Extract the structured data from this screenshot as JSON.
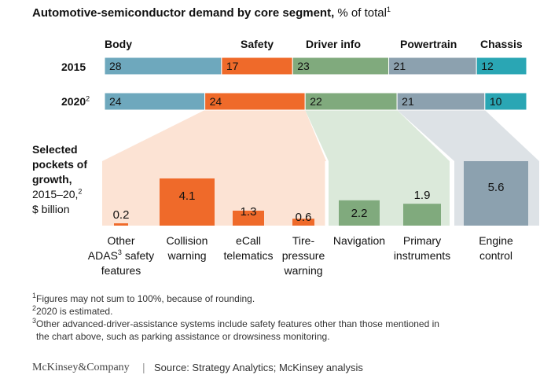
{
  "title": {
    "bold": "Automotive-semiconductor demand by core segment,",
    "unit": "% of total",
    "sup": "1"
  },
  "colors": {
    "body": "#6ea8bd",
    "safety": "#ef6a2a",
    "driver_info": "#80aa7d",
    "powertrain": "#8ca1af",
    "chassis": "#2aa6b4"
  },
  "chart_data": {
    "type": "bar",
    "stacked_bars": {
      "segments": [
        "Body",
        "Safety",
        "Driver info",
        "Powertrain",
        "Chassis"
      ],
      "rows": [
        {
          "year": "2015",
          "year_sup": "",
          "values": [
            28,
            17,
            23,
            21,
            12
          ]
        },
        {
          "year": "2020",
          "year_sup": "2",
          "values": [
            24,
            24,
            22,
            21,
            10
          ]
        }
      ]
    },
    "growth": {
      "label_bold": [
        "Selected",
        "pockets of",
        "growth,"
      ],
      "label_normal": [
        "2015–20,",
        "$ billion"
      ],
      "label_sup": "2",
      "categories": [
        {
          "label": [
            "Other",
            "ADAS safety",
            "features"
          ],
          "label_sup": "3",
          "value": 0.2,
          "display": "0.2",
          "segment": "Safety"
        },
        {
          "label": [
            "Collision",
            "warning"
          ],
          "label_sup": "",
          "value": 4.1,
          "display": "4.1",
          "segment": "Safety"
        },
        {
          "label": [
            "eCall",
            "telematics"
          ],
          "label_sup": "",
          "value": 1.3,
          "display": "1.3",
          "segment": "Safety"
        },
        {
          "label": [
            "Tire-",
            "pressure",
            "warning"
          ],
          "label_sup": "",
          "value": 0.6,
          "display": "0.6",
          "segment": "Safety"
        },
        {
          "label": [
            "Navigation"
          ],
          "label_sup": "",
          "value": 2.2,
          "display": "2.2",
          "segment": "Driver info"
        },
        {
          "label": [
            "Primary",
            "instruments"
          ],
          "label_sup": "",
          "value": 1.9,
          "display": "1.9",
          "segment": "Driver info"
        },
        {
          "label": [
            "Engine",
            "control"
          ],
          "label_sup": "",
          "value": 5.6,
          "display": "5.6",
          "segment": "Powertrain"
        }
      ]
    }
  },
  "footnotes": [
    {
      "sup": "1",
      "text": "Figures may not sum to 100%, because of rounding."
    },
    {
      "sup": "2",
      "text": "2020 is estimated."
    },
    {
      "sup": "3",
      "text": "Other advanced-driver-assistance systems include safety features other than those mentioned in"
    },
    {
      "sup": "",
      "text": "the chart above, such as parking assistance or drowsiness monitoring."
    }
  ],
  "footer": {
    "brand": "McKinsey&Company",
    "separator": "|",
    "source": "Source: Strategy Analytics; McKinsey analysis"
  }
}
